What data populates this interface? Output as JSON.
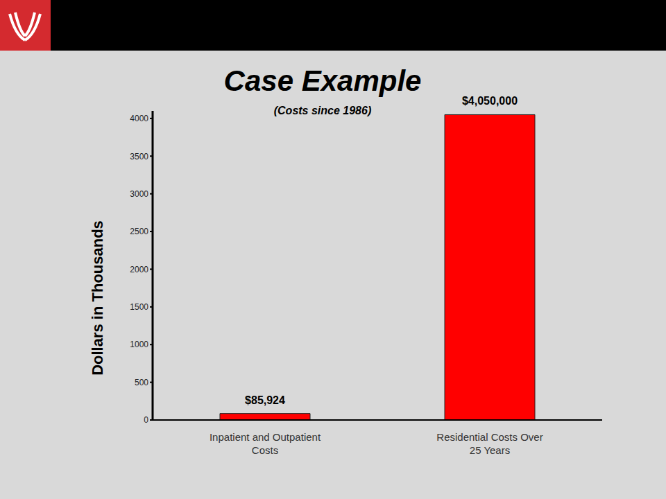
{
  "chart_data": {
    "type": "bar",
    "title": "Case Example",
    "subtitle": "(Costs since 1986)",
    "y_label": "Dollars in Thousands",
    "categories": [
      "Inpatient and Outpatient Costs",
      "Residential Costs Over 25 Years"
    ],
    "values": [
      85.924,
      4050
    ],
    "value_labels": [
      "$85,924",
      "$4,050,000"
    ],
    "color": "#ff0000",
    "ylim": [
      0,
      4100
    ],
    "yticks": [
      0,
      500,
      1000,
      1500,
      2000,
      2500,
      3000,
      3500,
      4000
    ],
    "grid": false,
    "data_labels": true
  }
}
